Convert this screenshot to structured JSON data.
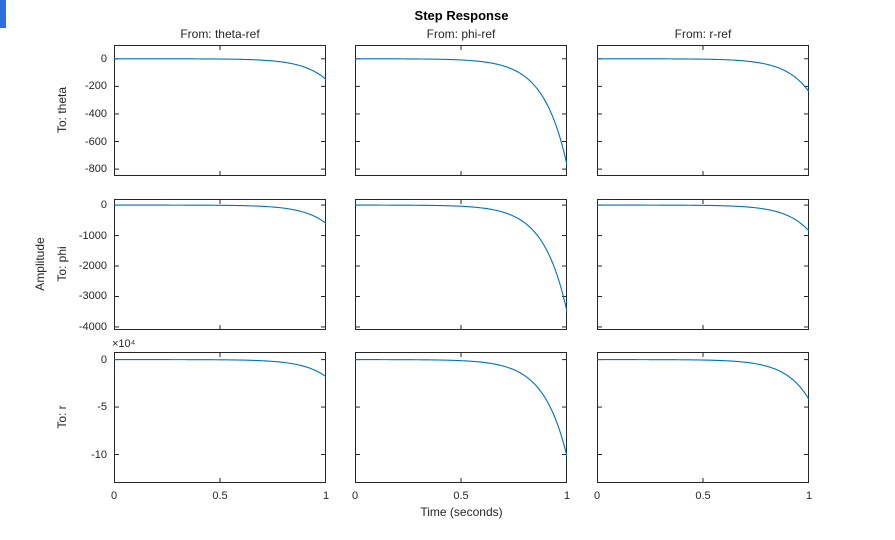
{
  "chart_data": {
    "type": "line",
    "title": "Step Response",
    "xlabel": "Time (seconds)",
    "ylabel": "Amplitude",
    "grid": false,
    "legend_position": "none",
    "line_color": "#0072BD",
    "axis_color": "#262626",
    "columns": [
      "From: theta-ref",
      "From: phi-ref",
      "From: r-ref"
    ],
    "rows": [
      "To: theta",
      "To: phi",
      "To: r"
    ],
    "x_range": [
      0,
      1
    ],
    "x_ticks": [
      0,
      0.5,
      1
    ],
    "x_tick_labels": [
      "0",
      "0.5",
      "1"
    ],
    "row_axes": [
      {
        "ylim": [
          -850,
          100
        ],
        "yticks": [
          0,
          -200,
          -400,
          -600,
          -800
        ],
        "ytick_labels": [
          "0",
          "-200",
          "-400",
          "-600",
          "-800"
        ],
        "multiplier": ""
      },
      {
        "ylim": [
          -4100,
          200
        ],
        "yticks": [
          0,
          -1000,
          -2000,
          -3000,
          -4000
        ],
        "ytick_labels": [
          "0",
          "-1000",
          "-2000",
          "-3000",
          "-4000"
        ],
        "multiplier": ""
      },
      {
        "ylim": [
          -13,
          0.8
        ],
        "yticks": [
          0,
          -5,
          -10
        ],
        "ytick_labels": [
          "0",
          "-5",
          "-10"
        ],
        "multiplier": "×10⁴",
        "units": "1e4"
      }
    ],
    "curve_model": {
      "type": "unstable-exponential-divergence",
      "formula": "y(t) = y_final * (exp(a*t) - 1) / (exp(a) - 1)",
      "steepness": 9,
      "start_value": 0
    },
    "final_values": [
      [
        -150,
        -770,
        -240
      ],
      [
        -600,
        -3500,
        -850
      ],
      [
        -1.8,
        -10.2,
        -4.2
      ]
    ]
  }
}
